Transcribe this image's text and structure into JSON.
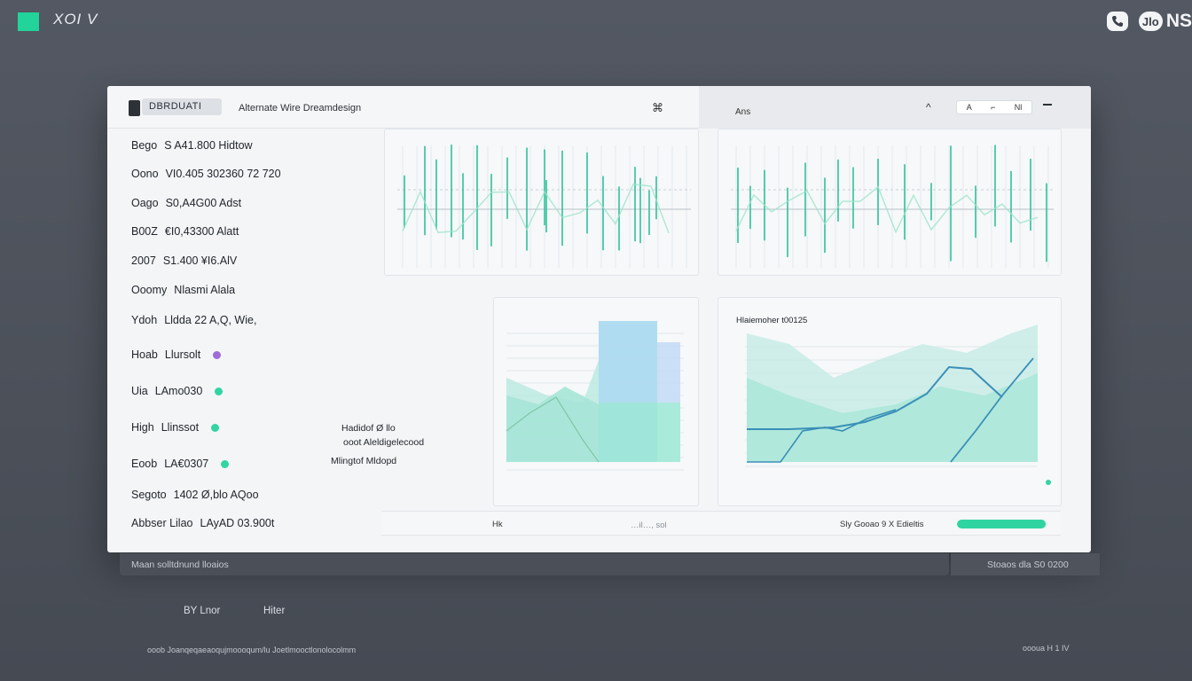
{
  "app": {
    "brand_name": "XOI V",
    "logo_text": "NS",
    "logo_pill_text": "Jlo"
  },
  "header": {
    "tab_label": "DBRDUATI",
    "subtitle": "Alternate Wire Dreamdesign",
    "close_symbol": "⌘",
    "panel_label": "Ans",
    "caret_symbol": "^",
    "pill_items": [
      "A",
      "⌐",
      "Nl"
    ]
  },
  "list": {
    "items": [
      {
        "label": "Bego",
        "value": "S A41.800 Hidtow"
      },
      {
        "label": "Oono",
        "value": "VI0.405 302360 72 720"
      },
      {
        "label": "Oago",
        "value": "S0,A4G00 Adst"
      },
      {
        "label": "B00Z",
        "value": "€I0,43300 Alatt"
      },
      {
        "label": "2007",
        "value": "S1.400 ¥I6.AlV"
      },
      {
        "label": "Ooomy",
        "value": "Nlasmi Alala"
      },
      {
        "label": "Ydoh",
        "value": "Lldda 22 A,Q, Wie,"
      },
      {
        "label": "Hoab",
        "value": "Llursolt",
        "dot": "#a06ad8"
      },
      {
        "label": "Uia",
        "value": "LAmo030",
        "dot": "#33d4a3"
      },
      {
        "label": "High",
        "value": "Llinssot",
        "dot": "#33d4a3"
      },
      {
        "label": "Eoob",
        "value": "LA€0307",
        "dot": "#33d4a3"
      },
      {
        "label": "Segoto",
        "value": "1402 Ø,blo AQoo"
      },
      {
        "label": "Abbser Lilao",
        "value": "LAyAD 03.900t"
      }
    ]
  },
  "middle_notes": [
    "Hadidof Ø llo",
    "ooot Aleldigelecood",
    "Mlingtof Mldopd"
  ],
  "area_chart": {
    "title": "Hlaiemoher t00125"
  },
  "footer": {
    "left": "Hk",
    "mid": "…il…, sol",
    "right": "Sly Gooao 9 X Edieltis",
    "progress": 0.98
  },
  "status_strip": {
    "left": "Maan solltdnund lloaios",
    "right": "Stoaos dla S0 0200"
  },
  "bottom_links": [
    "BY Lnor",
    "Hiter"
  ],
  "fine_print": {
    "left": "ooob Joanqeqaeaoqujmoooqum/lu Joetlmooctlonolocolmm",
    "right": "oooua H 1 IV"
  },
  "colors": {
    "accent": "#22d39a",
    "line_green": "#2fc29a",
    "line_teal": "#3a8fb7",
    "window_bg": "#f3f5f7"
  }
}
